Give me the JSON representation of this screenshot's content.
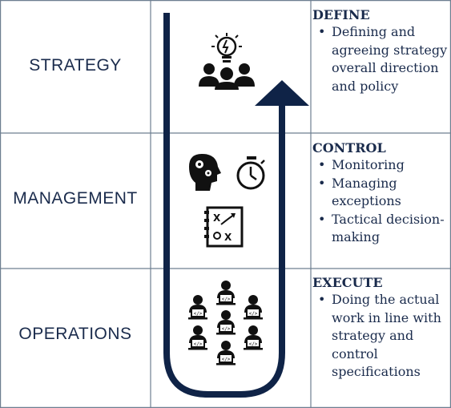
{
  "rows": [
    {
      "level": "STRATEGY",
      "heading": "DEFINE",
      "bullets": [
        "Defining and agreeing strategy overall direction and policy"
      ]
    },
    {
      "level": "MANAGEMENT",
      "heading": "CONTROL",
      "bullets": [
        "Monitoring",
        "Managing exceptions",
        "Tactical decision-making"
      ]
    },
    {
      "level": "OPERATIONS",
      "heading": "EXECUTE",
      "bullets": [
        "Doing the actual work in line with strategy and control specifications"
      ]
    }
  ],
  "icons": {
    "strategy": [
      "idea-lightbulb-icon",
      "team-group-icon"
    ],
    "management": [
      "brain-gears-icon",
      "stopwatch-icon",
      "tactics-board-icon"
    ],
    "operations": [
      "coder-workers-icon"
    ]
  },
  "colors": {
    "arrow": "#0f2347",
    "grid": "#6e7f91",
    "text": "#1a2b4c"
  }
}
